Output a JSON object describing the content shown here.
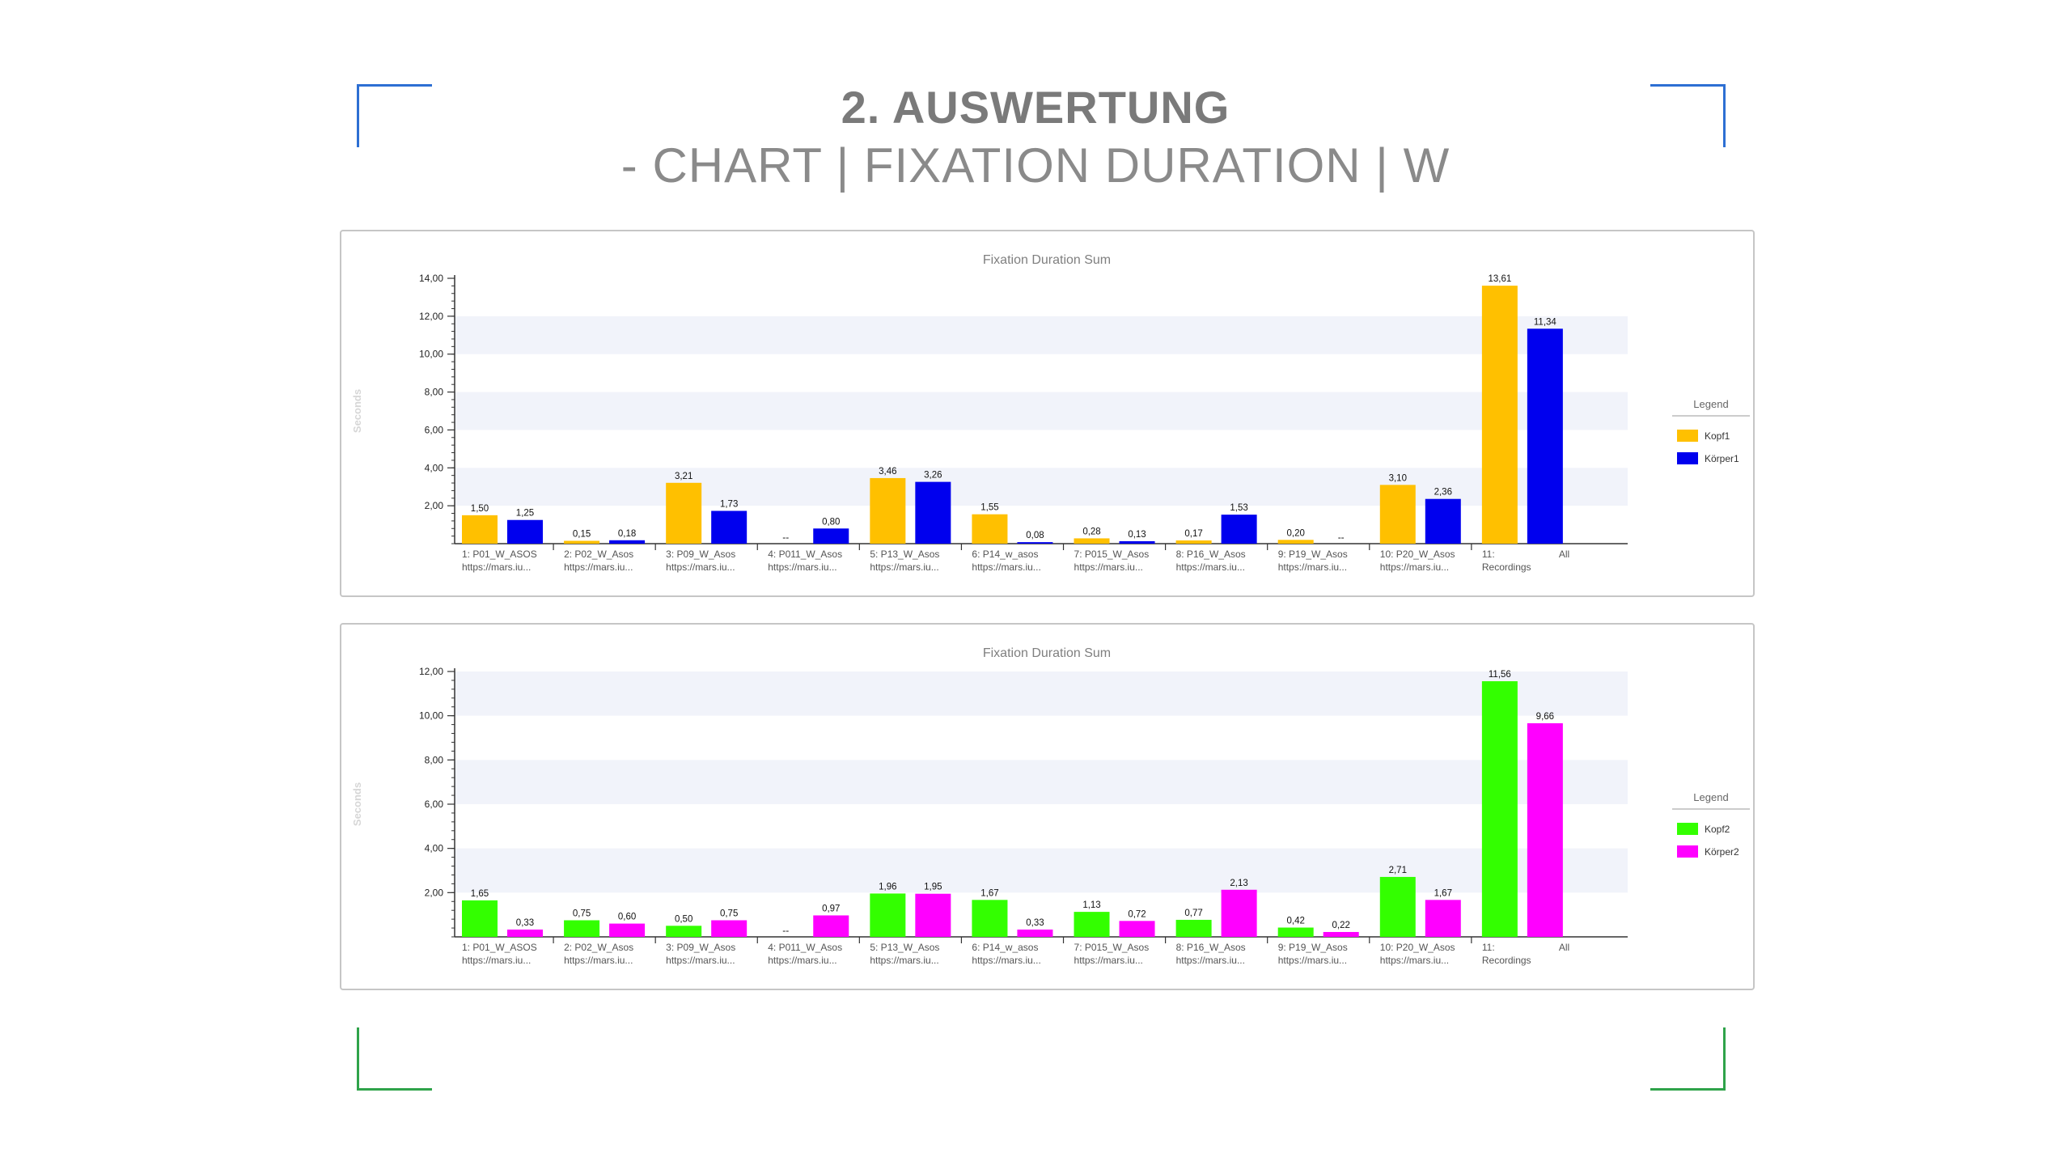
{
  "slide": {
    "title": "2. AUSWERTUNG",
    "subtitle": "- CHART | FIXATION DURATION | W"
  },
  "chart_data": [
    {
      "type": "bar",
      "title": "Fixation Duration Sum",
      "ylabel": "Seconds",
      "ylim": [
        0,
        14
      ],
      "yticks": [
        2,
        4,
        6,
        8,
        10,
        12,
        14
      ],
      "ytick_labels": [
        "2,00",
        "4,00",
        "6,00",
        "8,00",
        "10,00",
        "12,00",
        "14,00"
      ],
      "grid": "alternating horizontal bands",
      "legend_title": "Legend",
      "legend_position": "right",
      "categories": [
        [
          "1: P01_W_ASOS",
          "https://mars.iu..."
        ],
        [
          "2: P02_W_Asos",
          "https://mars.iu..."
        ],
        [
          "3: P09_W_Asos",
          "https://mars.iu..."
        ],
        [
          "4: P011_W_Asos",
          "https://mars.iu..."
        ],
        [
          "5: P13_W_Asos",
          "https://mars.iu..."
        ],
        [
          "6: P14_w_asos",
          "https://mars.iu..."
        ],
        [
          "7: P015_W_Asos",
          "https://mars.iu..."
        ],
        [
          "8: P16_W_Asos",
          "https://mars.iu..."
        ],
        [
          "9: P19_W_Asos",
          "https://mars.iu..."
        ],
        [
          "10: P20_W_Asos",
          "https://mars.iu..."
        ],
        [
          "11:",
          "Recordings"
        ]
      ],
      "extra_tick_label": "All",
      "series": [
        {
          "name": "Kopf1",
          "color": "#ffc000",
          "values": [
            1.5,
            0.15,
            3.21,
            null,
            3.46,
            1.55,
            0.28,
            0.17,
            0.2,
            3.1,
            13.61
          ],
          "labels": [
            "1,50",
            "0,15",
            "3,21",
            "--",
            "3,46",
            "1,55",
            "0,28",
            "0,17",
            "0,20",
            "3,10",
            "13,61"
          ]
        },
        {
          "name": "Körper1",
          "color": "#0000ee",
          "values": [
            1.25,
            0.18,
            1.73,
            0.8,
            3.26,
            0.08,
            0.13,
            1.53,
            null,
            2.36,
            11.34
          ],
          "labels": [
            "1,25",
            "0,18",
            "1,73",
            "0,80",
            "3,26",
            "0,08",
            "0,13",
            "1,53",
            "--",
            "2,36",
            "11,34"
          ]
        }
      ]
    },
    {
      "type": "bar",
      "title": "Fixation Duration Sum",
      "ylabel": "Seconds",
      "ylim": [
        0,
        12
      ],
      "yticks": [
        2,
        4,
        6,
        8,
        10,
        12
      ],
      "ytick_labels": [
        "2,00",
        "4,00",
        "6,00",
        "8,00",
        "10,00",
        "12,00"
      ],
      "grid": "alternating horizontal bands",
      "legend_title": "Legend",
      "legend_position": "right",
      "categories": [
        [
          "1: P01_W_ASOS",
          "https://mars.iu..."
        ],
        [
          "2: P02_W_Asos",
          "https://mars.iu..."
        ],
        [
          "3: P09_W_Asos",
          "https://mars.iu..."
        ],
        [
          "4: P011_W_Asos",
          "https://mars.iu..."
        ],
        [
          "5: P13_W_Asos",
          "https://mars.iu..."
        ],
        [
          "6: P14_w_asos",
          "https://mars.iu..."
        ],
        [
          "7: P015_W_Asos",
          "https://mars.iu..."
        ],
        [
          "8: P16_W_Asos",
          "https://mars.iu..."
        ],
        [
          "9: P19_W_Asos",
          "https://mars.iu..."
        ],
        [
          "10: P20_W_Asos",
          "https://mars.iu..."
        ],
        [
          "11:",
          "Recordings"
        ]
      ],
      "extra_tick_label": "All",
      "series": [
        {
          "name": "Kopf2",
          "color": "#33ff00",
          "values": [
            1.65,
            0.75,
            0.5,
            null,
            1.96,
            1.67,
            1.13,
            0.77,
            0.42,
            2.71,
            11.56
          ],
          "labels": [
            "1,65",
            "0,75",
            "0,50",
            "--",
            "1,96",
            "1,67",
            "1,13",
            "0,77",
            "0,42",
            "2,71",
            "11,56"
          ]
        },
        {
          "name": "Körper2",
          "color": "#ff00ff",
          "values": [
            0.33,
            0.6,
            0.75,
            0.97,
            1.95,
            0.33,
            0.72,
            2.13,
            0.22,
            1.67,
            9.66
          ],
          "labels": [
            "0,33",
            "0,60",
            "0,75",
            "0,97",
            "1,95",
            "0,33",
            "0,72",
            "2,13",
            "0,22",
            "1,67",
            "9,66"
          ]
        }
      ]
    }
  ]
}
